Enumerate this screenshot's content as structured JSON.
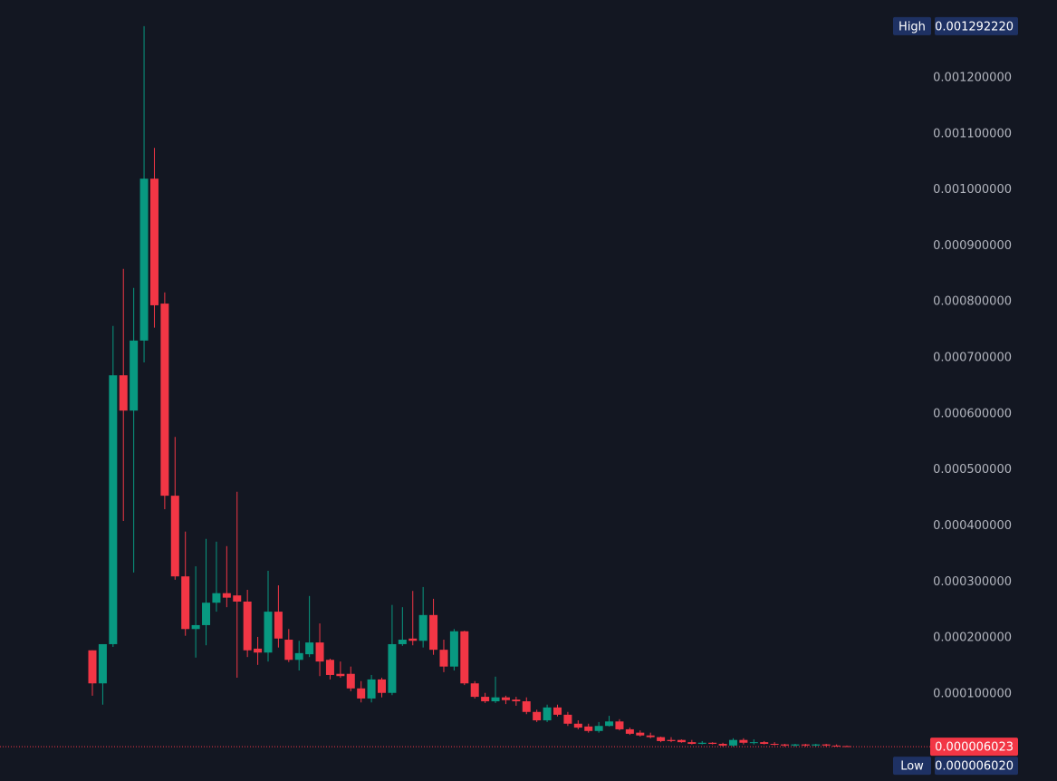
{
  "chart_data": {
    "type": "candlestick",
    "up_color": "#089981",
    "down_color": "#f23645",
    "open": [
      0.000178,
      0.000119,
      0.000189,
      0.000669,
      0.000606,
      0.000731,
      0.00102,
      0.000797,
      0.000454,
      0.00031,
      0.000216,
      0.000223,
      0.000263,
      0.00028,
      0.000276,
      0.000265,
      0.000181,
      0.000174,
      0.000247,
      0.000197,
      0.000161,
      0.000171,
      0.000192,
      0.000161,
      0.000136,
      0.000136,
      0.00011,
      9.2e-05,
      0.000126,
      0.000102,
      0.000189,
      0.000199,
      0.000195,
      0.000241,
      0.000179,
      0.000149,
      0.000212,
      0.000119,
      9.5e-05,
      8.7e-05,
      9.4e-05,
      9e-05,
      8.7e-05,
      6.8e-05,
      5.3e-05,
      7.6e-05,
      6.3e-05,
      4.7e-05,
      4.2e-05,
      3.4e-05,
      4.3e-05,
      5.1e-05,
      3.7e-05,
      3.1e-05,
      2.6e-05,
      2.3e-05,
      1.8e-05,
      1.8e-05,
      1.4e-05,
      1.1e-05,
      1.3e-05,
      1.1e-05,
      8e-06,
      1.8e-05,
      1.3e-05,
      1.4e-05,
      1.1e-05,
      1e-05,
      8e-06,
      1e-05,
      8e-06,
      1e-05,
      8e-06,
      7e-06
    ],
    "high": [
      0.000178,
      0.000189,
      0.000757,
      0.000859,
      0.000825,
      0.00129222,
      0.001075,
      0.000817,
      0.000559,
      0.00039,
      0.000328,
      0.000377,
      0.000372,
      0.000364,
      0.000461,
      0.000286,
      0.000202,
      0.00032,
      0.000294,
      0.000216,
      0.000195,
      0.000275,
      0.000226,
      0.000163,
      0.000158,
      0.000149,
      0.000123,
      0.000134,
      0.000129,
      0.000259,
      0.000255,
      0.000284,
      0.000291,
      0.00027,
      0.000197,
      0.000216,
      0.000213,
      0.000123,
      0.000102,
      0.000131,
      9.7e-05,
      9.5e-05,
      9.4e-05,
      7.2e-05,
      8.1e-05,
      8.1e-05,
      6.8e-05,
      5.3e-05,
      4.7e-05,
      5e-05,
      6.1e-05,
      5.5e-05,
      4e-05,
      3.5e-05,
      3.1e-05,
      2.4e-05,
      2.3e-05,
      1.9e-05,
      1.8e-05,
      1.6e-05,
      1.4e-05,
      1.3e-05,
      2.1e-05,
      2.1e-05,
      1.9e-05,
      1.6e-05,
      1.4e-05,
      1.1e-05,
      1.1e-05,
      1.1e-05,
      1.1e-05,
      1.1e-05,
      1e-05,
      8e-06
    ],
    "low": [
      9.7e-05,
      8.1e-05,
      0.000184,
      0.000409,
      0.000317,
      0.000692,
      0.000754,
      0.00043,
      0.000304,
      0.000204,
      0.000165,
      0.000187,
      0.000247,
      0.000255,
      0.000129,
      0.000166,
      0.000152,
      0.000158,
      0.000183,
      0.000157,
      0.000142,
      0.000166,
      0.000132,
      0.000126,
      0.000129,
      0.000105,
      8.5e-05,
      8.5e-05,
      9.4e-05,
      9.8e-05,
      0.000186,
      0.000187,
      0.000183,
      0.00017,
      0.000139,
      0.000142,
      0.000116,
      9.2e-05,
      8.4e-05,
      8.4e-05,
      8.2e-05,
      7.9e-05,
      6.4e-05,
      5e-05,
      5e-05,
      6e-05,
      4.3e-05,
      3.7e-05,
      3.1e-05,
      3.1e-05,
      4.2e-05,
      3.5e-05,
      2.7e-05,
      2.4e-05,
      2.1e-05,
      1.4e-05,
      1.4e-05,
      1.3e-05,
      1e-05,
      1e-05,
      1e-05,
      6e-06,
      6e-06,
      1e-05,
      1e-05,
      1e-05,
      8e-06,
      6e-06,
      6e-06,
      6e-06,
      6e-06,
      6e-06,
      6e-06,
      6.02e-06
    ],
    "close": [
      0.000119,
      0.000189,
      0.000669,
      0.000606,
      0.000731,
      0.00102,
      0.000794,
      0.000454,
      0.00031,
      0.000216,
      0.000223,
      0.000263,
      0.00028,
      0.000272,
      0.000265,
      0.000178,
      0.000174,
      0.000247,
      0.000199,
      0.000161,
      0.000173,
      0.000192,
      0.000158,
      0.000134,
      0.000132,
      0.00011,
      9.2e-05,
      0.000126,
      0.000102,
      0.000189,
      0.000197,
      0.000195,
      0.000241,
      0.000179,
      0.000149,
      0.000212,
      0.000119,
      9.5e-05,
      8.7e-05,
      9.4e-05,
      8.9e-05,
      8.7e-05,
      6.8e-05,
      5.3e-05,
      7.6e-05,
      6.3e-05,
      4.7e-05,
      4e-05,
      3.4e-05,
      4.3e-05,
      5.1e-05,
      3.7e-05,
      2.9e-05,
      2.6e-05,
      2.3e-05,
      1.6e-05,
      1.6e-05,
      1.4e-05,
      1.1e-05,
      1.3e-05,
      1.1e-05,
      8e-06,
      1.8e-05,
      1.3e-05,
      1.4e-05,
      1.1e-05,
      1e-05,
      8e-06,
      1e-05,
      8e-06,
      1e-05,
      8e-06,
      7e-06,
      6.023e-06
    ],
    "ylim": [
      -5.53e-05,
      0.001339
    ],
    "yticks": [
      {
        "value": 0.0001,
        "label": "0.000100000"
      },
      {
        "value": 0.0002,
        "label": "0.000200000"
      },
      {
        "value": 0.0003,
        "label": "0.000300000"
      },
      {
        "value": 0.0004,
        "label": "0.000400000"
      },
      {
        "value": 0.0005,
        "label": "0.000500000"
      },
      {
        "value": 0.0006,
        "label": "0.000600000"
      },
      {
        "value": 0.0007,
        "label": "0.000700000"
      },
      {
        "value": 0.0008,
        "label": "0.000800000"
      },
      {
        "value": 0.0009,
        "label": "0.000900000"
      },
      {
        "value": 0.001,
        "label": "0.001000000"
      },
      {
        "value": 0.0011,
        "label": "0.001100000"
      },
      {
        "value": 0.0012,
        "label": "0.001200000"
      }
    ],
    "grid": false,
    "high_title": "High",
    "high_value": {
      "value": 0.00129222,
      "label": "0.001292220"
    },
    "low_title": "Low",
    "low_value": {
      "value": 6.02e-06,
      "label": "0.000006020"
    },
    "last_price": {
      "value": 6.023e-06,
      "label": "0.000006023"
    }
  }
}
